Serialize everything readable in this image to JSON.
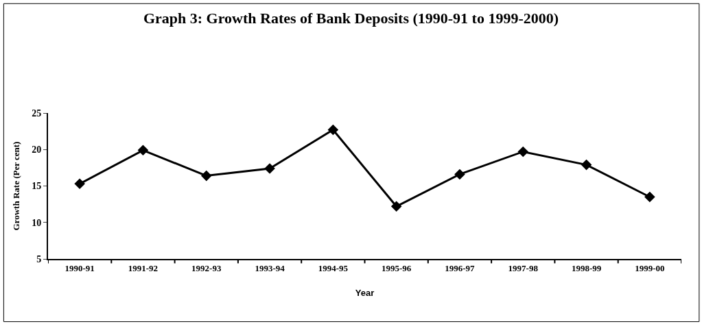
{
  "chart_data": {
    "type": "line",
    "title": "Graph 3: Growth Rates of Bank Deposits (1990-91 to 1999-2000)",
    "xlabel": "Year",
    "ylabel": "Growth Rate (Per cent)",
    "categories": [
      "1990-91",
      "1991-92",
      "1992-93",
      "1993-94",
      "1994-95",
      "1995-96",
      "1996-97",
      "1997-98",
      "1998-99",
      "1999-00"
    ],
    "series": [
      {
        "color": "#000000",
        "values": [
          15.3,
          19.9,
          16.4,
          17.4,
          22.7,
          12.2,
          16.6,
          19.7,
          17.9,
          13.5
        ]
      }
    ],
    "ylim": [
      5,
      25
    ],
    "yticks": [
      5,
      10,
      15,
      20,
      25
    ],
    "marker": "diamond",
    "line_style": "solid"
  }
}
